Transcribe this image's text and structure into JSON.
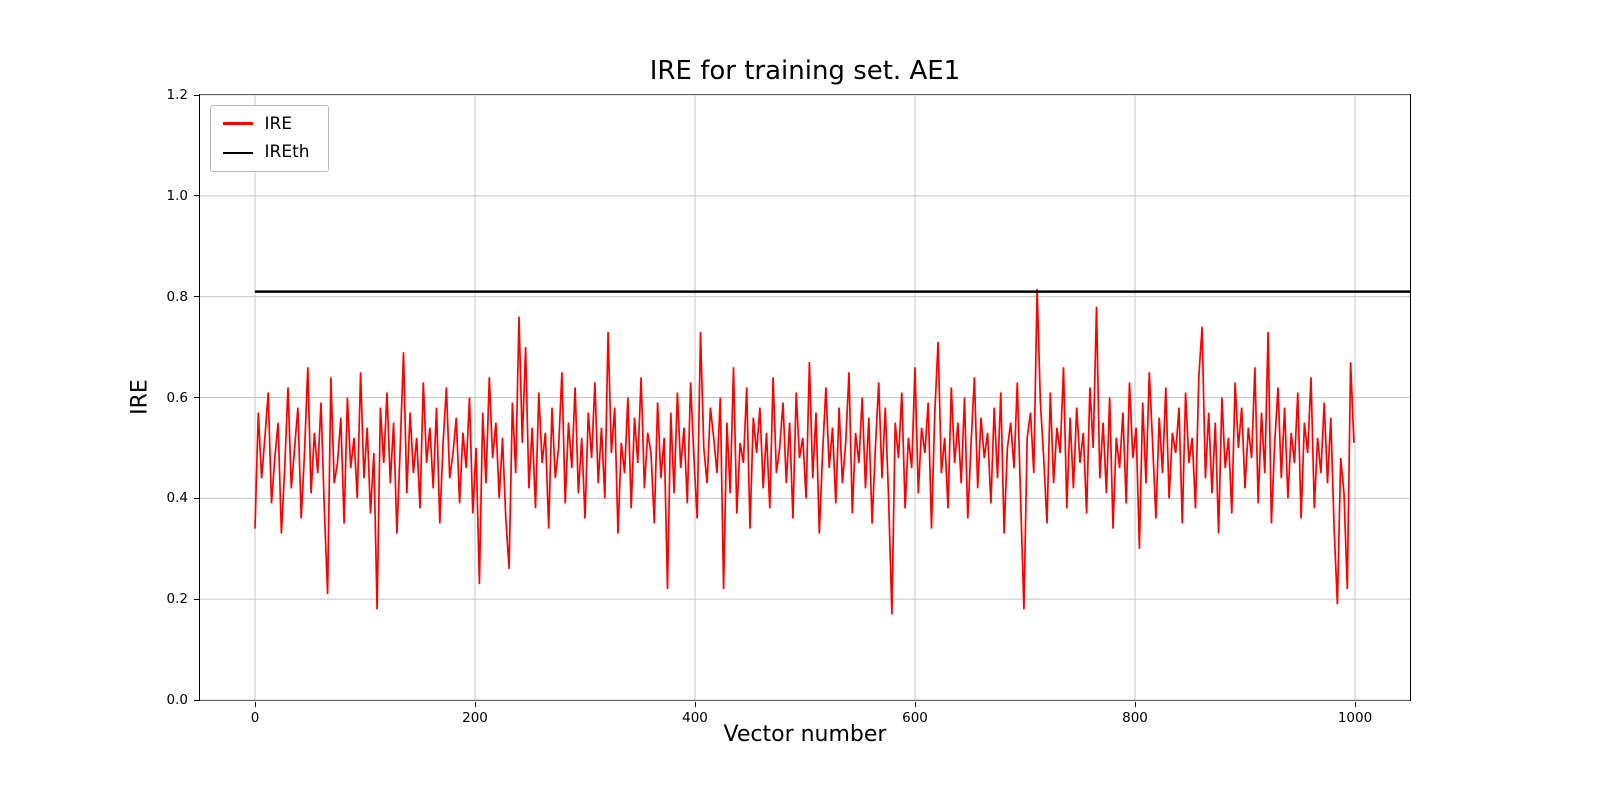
{
  "chart_data": {
    "type": "line",
    "title": "IRE for training set. AE1",
    "xlabel": "Vector number",
    "ylabel": "IRE",
    "xlim": [
      -50,
      1050
    ],
    "ylim": [
      0,
      1.2
    ],
    "xticks": [
      0,
      200,
      400,
      600,
      800,
      1000
    ],
    "xtick_labels": [
      "0",
      "200",
      "400",
      "600",
      "800",
      "1000"
    ],
    "yticks": [
      0,
      0.2,
      0.4,
      0.6,
      0.8,
      1.0,
      1.2
    ],
    "ytick_labels": [
      "0.0",
      "0.2",
      "0.4",
      "0.6",
      "0.8",
      "1.0",
      "1.2"
    ],
    "grid": true,
    "grid_color": "#c8c8c8",
    "legend": {
      "position": "upper left",
      "entries": [
        {
          "label": "IRE",
          "color": "#ff0000"
        },
        {
          "label": "IREth",
          "color": "#000000"
        }
      ]
    },
    "series": [
      {
        "name": "IRE",
        "color": "#ff0000",
        "x_start": 0,
        "x_step": 3,
        "values": [
          0.34,
          0.57,
          0.44,
          0.52,
          0.61,
          0.39,
          0.48,
          0.55,
          0.33,
          0.46,
          0.62,
          0.42,
          0.5,
          0.58,
          0.36,
          0.49,
          0.66,
          0.41,
          0.53,
          0.45,
          0.59,
          0.38,
          0.21,
          0.64,
          0.43,
          0.47,
          0.56,
          0.35,
          0.6,
          0.46,
          0.52,
          0.4,
          0.65,
          0.44,
          0.54,
          0.37,
          0.49,
          0.18,
          0.58,
          0.47,
          0.61,
          0.43,
          0.55,
          0.33,
          0.5,
          0.69,
          0.41,
          0.57,
          0.45,
          0.52,
          0.38,
          0.63,
          0.47,
          0.54,
          0.42,
          0.58,
          0.35,
          0.51,
          0.62,
          0.44,
          0.49,
          0.56,
          0.39,
          0.53,
          0.46,
          0.6,
          0.37,
          0.5,
          0.23,
          0.57,
          0.43,
          0.64,
          0.48,
          0.55,
          0.4,
          0.52,
          0.36,
          0.26,
          0.59,
          0.45,
          0.76,
          0.51,
          0.7,
          0.42,
          0.54,
          0.38,
          0.61,
          0.47,
          0.53,
          0.34,
          0.58,
          0.44,
          0.5,
          0.65,
          0.39,
          0.55,
          0.46,
          0.62,
          0.41,
          0.52,
          0.36,
          0.57,
          0.48,
          0.63,
          0.43,
          0.54,
          0.4,
          0.73,
          0.49,
          0.58,
          0.33,
          0.51,
          0.45,
          0.6,
          0.38,
          0.56,
          0.47,
          0.64,
          0.42,
          0.53,
          0.49,
          0.35,
          0.59,
          0.44,
          0.52,
          0.22,
          0.57,
          0.41,
          0.61,
          0.46,
          0.54,
          0.39,
          0.63,
          0.48,
          0.36,
          0.73,
          0.5,
          0.43,
          0.58,
          0.52,
          0.45,
          0.6,
          0.22,
          0.55,
          0.41,
          0.66,
          0.37,
          0.51,
          0.47,
          0.62,
          0.34,
          0.56,
          0.49,
          0.58,
          0.42,
          0.53,
          0.38,
          0.64,
          0.45,
          0.5,
          0.59,
          0.43,
          0.55,
          0.36,
          0.61,
          0.48,
          0.52,
          0.4,
          0.67,
          0.44,
          0.57,
          0.33,
          0.49,
          0.62,
          0.46,
          0.54,
          0.39,
          0.58,
          0.43,
          0.51,
          0.65,
          0.37,
          0.53,
          0.47,
          0.6,
          0.42,
          0.56,
          0.35,
          0.5,
          0.63,
          0.44,
          0.58,
          0.4,
          0.17,
          0.55,
          0.48,
          0.61,
          0.38,
          0.52,
          0.46,
          0.66,
          0.41,
          0.54,
          0.49,
          0.59,
          0.34,
          0.57,
          0.71,
          0.45,
          0.52,
          0.38,
          0.62,
          0.47,
          0.55,
          0.43,
          0.6,
          0.36,
          0.51,
          0.64,
          0.42,
          0.56,
          0.48,
          0.53,
          0.39,
          0.58,
          0.44,
          0.61,
          0.33,
          0.5,
          0.55,
          0.46,
          0.63,
          0.4,
          0.18,
          0.52,
          0.57,
          0.45,
          0.815,
          0.59,
          0.48,
          0.35,
          0.61,
          0.43,
          0.54,
          0.49,
          0.66,
          0.38,
          0.56,
          0.42,
          0.58,
          0.47,
          0.53,
          0.37,
          0.62,
          0.5,
          0.78,
          0.44,
          0.55,
          0.41,
          0.6,
          0.34,
          0.52,
          0.46,
          0.57,
          0.39,
          0.63,
          0.48,
          0.54,
          0.3,
          0.59,
          0.43,
          0.65,
          0.51,
          0.36,
          0.56,
          0.45,
          0.62,
          0.4,
          0.53,
          0.49,
          0.58,
          0.35,
          0.61,
          0.47,
          0.52,
          0.38,
          0.64,
          0.74,
          0.44,
          0.57,
          0.41,
          0.55,
          0.33,
          0.6,
          0.46,
          0.52,
          0.37,
          0.63,
          0.5,
          0.58,
          0.42,
          0.54,
          0.48,
          0.66,
          0.39,
          0.57,
          0.45,
          0.73,
          0.35,
          0.51,
          0.62,
          0.44,
          0.58,
          0.4,
          0.53,
          0.47,
          0.61,
          0.36,
          0.55,
          0.49,
          0.64,
          0.38,
          0.52,
          0.45,
          0.59,
          0.43,
          0.56,
          0.34,
          0.19,
          0.48,
          0.41,
          0.22,
          0.67,
          0.51
        ]
      },
      {
        "name": "IREth",
        "color": "#000000",
        "constant": 0.81,
        "x_range": [
          0,
          1050
        ]
      }
    ]
  }
}
